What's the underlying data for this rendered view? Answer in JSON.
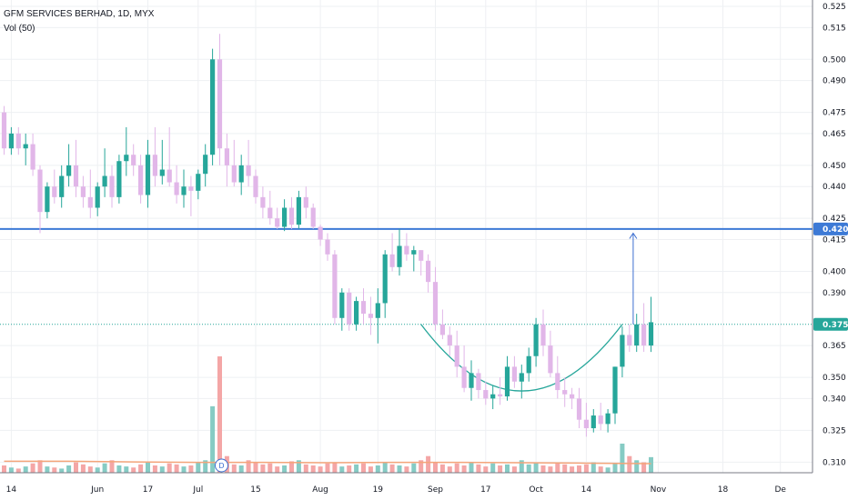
{
  "legend": {
    "title": "GFM SERVICES BERHAD, 1D, MYX",
    "volume": "Vol (50)"
  },
  "colors": {
    "up": "#26a69a",
    "down": "#e1b6e8",
    "level_strong": "#3d7ad6",
    "level_dotted": "#26a69a",
    "arrow": "#3d6fd0",
    "cup": "#26a69a",
    "vol_up": "#86cbc4",
    "vol_down": "#f4a6a6",
    "vol_ma": "#f4a57a",
    "grid": "#eef0f3"
  },
  "chart_data": {
    "type": "candlestick",
    "ylim": [
      0.305,
      0.528
    ],
    "y_ticks": [
      0.31,
      0.325,
      0.34,
      0.35,
      0.365,
      0.375,
      0.39,
      0.4,
      0.415,
      0.42,
      0.425,
      0.44,
      0.45,
      0.465,
      0.475,
      0.49,
      0.5,
      0.515,
      0.525
    ],
    "x_ticks": [
      {
        "label": "14",
        "idx": 1
      },
      {
        "label": "Jun",
        "idx": 13
      },
      {
        "label": "17",
        "idx": 20
      },
      {
        "label": "Jul",
        "idx": 27
      },
      {
        "label": "15",
        "idx": 35
      },
      {
        "label": "Aug",
        "idx": 44
      },
      {
        "label": "19",
        "idx": 52
      },
      {
        "label": "Sep",
        "idx": 60
      },
      {
        "label": "17",
        "idx": 67
      },
      {
        "label": "Oct",
        "idx": 74
      },
      {
        "label": "14",
        "idx": 81
      },
      {
        "label": "Nov",
        "idx": 91
      },
      {
        "label": "18",
        "idx": 100
      },
      {
        "label": "De",
        "idx": 108
      }
    ],
    "levels": [
      {
        "value": 0.42,
        "label": "0.420",
        "style": "solid"
      },
      {
        "value": 0.375,
        "label": "0.375",
        "style": "dotted"
      }
    ],
    "annotations": {
      "cup_start_idx": 58,
      "cup_end_idx": 86,
      "cup_low": 0.337,
      "cup_rim": 0.375,
      "arrow_idx": 86,
      "arrow_from": 0.375,
      "arrow_to": 0.418,
      "event_marker": {
        "idx": 30,
        "label": "D"
      }
    },
    "candles": [
      [
        0.475,
        0.478,
        0.455,
        0.458
      ],
      [
        0.458,
        0.468,
        0.455,
        0.465
      ],
      [
        0.465,
        0.468,
        0.455,
        0.458
      ],
      [
        0.458,
        0.465,
        0.45,
        0.46
      ],
      [
        0.46,
        0.465,
        0.445,
        0.448
      ],
      [
        0.448,
        0.45,
        0.418,
        0.428
      ],
      [
        0.428,
        0.442,
        0.425,
        0.44
      ],
      [
        0.44,
        0.448,
        0.432,
        0.435
      ],
      [
        0.435,
        0.45,
        0.43,
        0.445
      ],
      [
        0.445,
        0.46,
        0.44,
        0.45
      ],
      [
        0.45,
        0.462,
        0.435,
        0.44
      ],
      [
        0.44,
        0.445,
        0.43,
        0.435
      ],
      [
        0.435,
        0.448,
        0.425,
        0.43
      ],
      [
        0.43,
        0.442,
        0.426,
        0.44
      ],
      [
        0.44,
        0.458,
        0.435,
        0.445
      ],
      [
        0.445,
        0.45,
        0.43,
        0.435
      ],
      [
        0.435,
        0.455,
        0.432,
        0.452
      ],
      [
        0.452,
        0.468,
        0.445,
        0.455
      ],
      [
        0.455,
        0.46,
        0.445,
        0.45
      ],
      [
        0.45,
        0.455,
        0.432,
        0.436
      ],
      [
        0.436,
        0.462,
        0.43,
        0.455
      ],
      [
        0.455,
        0.468,
        0.44,
        0.445
      ],
      [
        0.445,
        0.462,
        0.441,
        0.448
      ],
      [
        0.448,
        0.468,
        0.44,
        0.442
      ],
      [
        0.442,
        0.45,
        0.432,
        0.436
      ],
      [
        0.436,
        0.448,
        0.43,
        0.44
      ],
      [
        0.44,
        0.445,
        0.426,
        0.438
      ],
      [
        0.438,
        0.448,
        0.434,
        0.446
      ],
      [
        0.446,
        0.46,
        0.44,
        0.455
      ],
      [
        0.455,
        0.505,
        0.45,
        0.5
      ],
      [
        0.5,
        0.512,
        0.45,
        0.458
      ],
      [
        0.458,
        0.465,
        0.44,
        0.45
      ],
      [
        0.45,
        0.462,
        0.44,
        0.442
      ],
      [
        0.442,
        0.455,
        0.436,
        0.45
      ],
      [
        0.45,
        0.462,
        0.44,
        0.445
      ],
      [
        0.445,
        0.448,
        0.432,
        0.435
      ],
      [
        0.435,
        0.44,
        0.425,
        0.43
      ],
      [
        0.43,
        0.438,
        0.422,
        0.425
      ],
      [
        0.425,
        0.43,
        0.42,
        0.421
      ],
      [
        0.421,
        0.434,
        0.419,
        0.43
      ],
      [
        0.43,
        0.435,
        0.42,
        0.422
      ],
      [
        0.422,
        0.438,
        0.42,
        0.435
      ],
      [
        0.435,
        0.44,
        0.425,
        0.43
      ],
      [
        0.43,
        0.432,
        0.42,
        0.421
      ],
      [
        0.421,
        0.422,
        0.412,
        0.415
      ],
      [
        0.415,
        0.418,
        0.405,
        0.408
      ],
      [
        0.408,
        0.41,
        0.375,
        0.378
      ],
      [
        0.378,
        0.392,
        0.372,
        0.39
      ],
      [
        0.39,
        0.392,
        0.372,
        0.375
      ],
      [
        0.375,
        0.388,
        0.372,
        0.386
      ],
      [
        0.386,
        0.392,
        0.375,
        0.38
      ],
      [
        0.38,
        0.388,
        0.37,
        0.378
      ],
      [
        0.378,
        0.392,
        0.366,
        0.385
      ],
      [
        0.385,
        0.41,
        0.378,
        0.408
      ],
      [
        0.408,
        0.418,
        0.4,
        0.402
      ],
      [
        0.402,
        0.42,
        0.398,
        0.412
      ],
      [
        0.412,
        0.418,
        0.405,
        0.408
      ],
      [
        0.408,
        0.412,
        0.4,
        0.41
      ],
      [
        0.41,
        0.41,
        0.398,
        0.405
      ],
      [
        0.405,
        0.408,
        0.39,
        0.395
      ],
      [
        0.395,
        0.402,
        0.372,
        0.375
      ],
      [
        0.375,
        0.382,
        0.368,
        0.37
      ],
      [
        0.37,
        0.374,
        0.36,
        0.365
      ],
      [
        0.365,
        0.372,
        0.35,
        0.355
      ],
      [
        0.355,
        0.365,
        0.343,
        0.345
      ],
      [
        0.345,
        0.358,
        0.339,
        0.352
      ],
      [
        0.352,
        0.354,
        0.34,
        0.344
      ],
      [
        0.344,
        0.348,
        0.337,
        0.34
      ],
      [
        0.34,
        0.346,
        0.335,
        0.342
      ],
      [
        0.342,
        0.35,
        0.337,
        0.341
      ],
      [
        0.341,
        0.36,
        0.339,
        0.355
      ],
      [
        0.355,
        0.36,
        0.345,
        0.348
      ],
      [
        0.348,
        0.356,
        0.34,
        0.352
      ],
      [
        0.352,
        0.364,
        0.348,
        0.36
      ],
      [
        0.36,
        0.378,
        0.355,
        0.375
      ],
      [
        0.375,
        0.382,
        0.36,
        0.365
      ],
      [
        0.365,
        0.372,
        0.35,
        0.352
      ],
      [
        0.352,
        0.36,
        0.34,
        0.344
      ],
      [
        0.344,
        0.35,
        0.336,
        0.342
      ],
      [
        0.342,
        0.345,
        0.335,
        0.34
      ],
      [
        0.34,
        0.345,
        0.326,
        0.33
      ],
      [
        0.33,
        0.338,
        0.322,
        0.326
      ],
      [
        0.326,
        0.335,
        0.324,
        0.332
      ],
      [
        0.332,
        0.338,
        0.325,
        0.328
      ],
      [
        0.328,
        0.335,
        0.324,
        0.333
      ],
      [
        0.333,
        0.355,
        0.328,
        0.355
      ],
      [
        0.355,
        0.374,
        0.35,
        0.37
      ],
      [
        0.37,
        0.375,
        0.362,
        0.365
      ],
      [
        0.365,
        0.38,
        0.362,
        0.375
      ],
      [
        0.375,
        0.385,
        0.362,
        0.365
      ],
      [
        0.365,
        0.388,
        0.362,
        0.376
      ]
    ],
    "volume": [
      0.35,
      0.25,
      0.2,
      0.3,
      0.45,
      0.6,
      0.3,
      0.25,
      0.2,
      0.35,
      0.5,
      0.4,
      0.3,
      0.25,
      0.45,
      0.6,
      0.35,
      0.3,
      0.25,
      0.4,
      0.5,
      0.35,
      0.3,
      0.45,
      0.4,
      0.3,
      0.35,
      0.5,
      0.6,
      3.2,
      5.6,
      0.8,
      0.4,
      0.35,
      0.6,
      0.5,
      0.4,
      0.45,
      0.3,
      0.35,
      0.55,
      0.6,
      0.4,
      0.35,
      0.3,
      0.45,
      0.5,
      0.3,
      0.35,
      0.4,
      0.45,
      0.3,
      0.35,
      0.5,
      0.4,
      0.35,
      0.3,
      0.45,
      0.6,
      0.8,
      0.5,
      0.4,
      0.3,
      0.45,
      0.35,
      0.5,
      0.4,
      0.3,
      0.45,
      0.35,
      0.4,
      0.3,
      0.6,
      0.4,
      0.5,
      0.35,
      0.3,
      0.45,
      0.4,
      0.3,
      0.35,
      0.4,
      0.5,
      0.3,
      0.25,
      0.45,
      1.4,
      0.8,
      0.6,
      0.5,
      0.75
    ],
    "volume_ma": [
      0.55,
      0.55,
      0.52,
      0.5,
      0.5,
      0.48,
      0.5,
      0.5,
      0.48,
      0.46,
      0.44
    ]
  }
}
